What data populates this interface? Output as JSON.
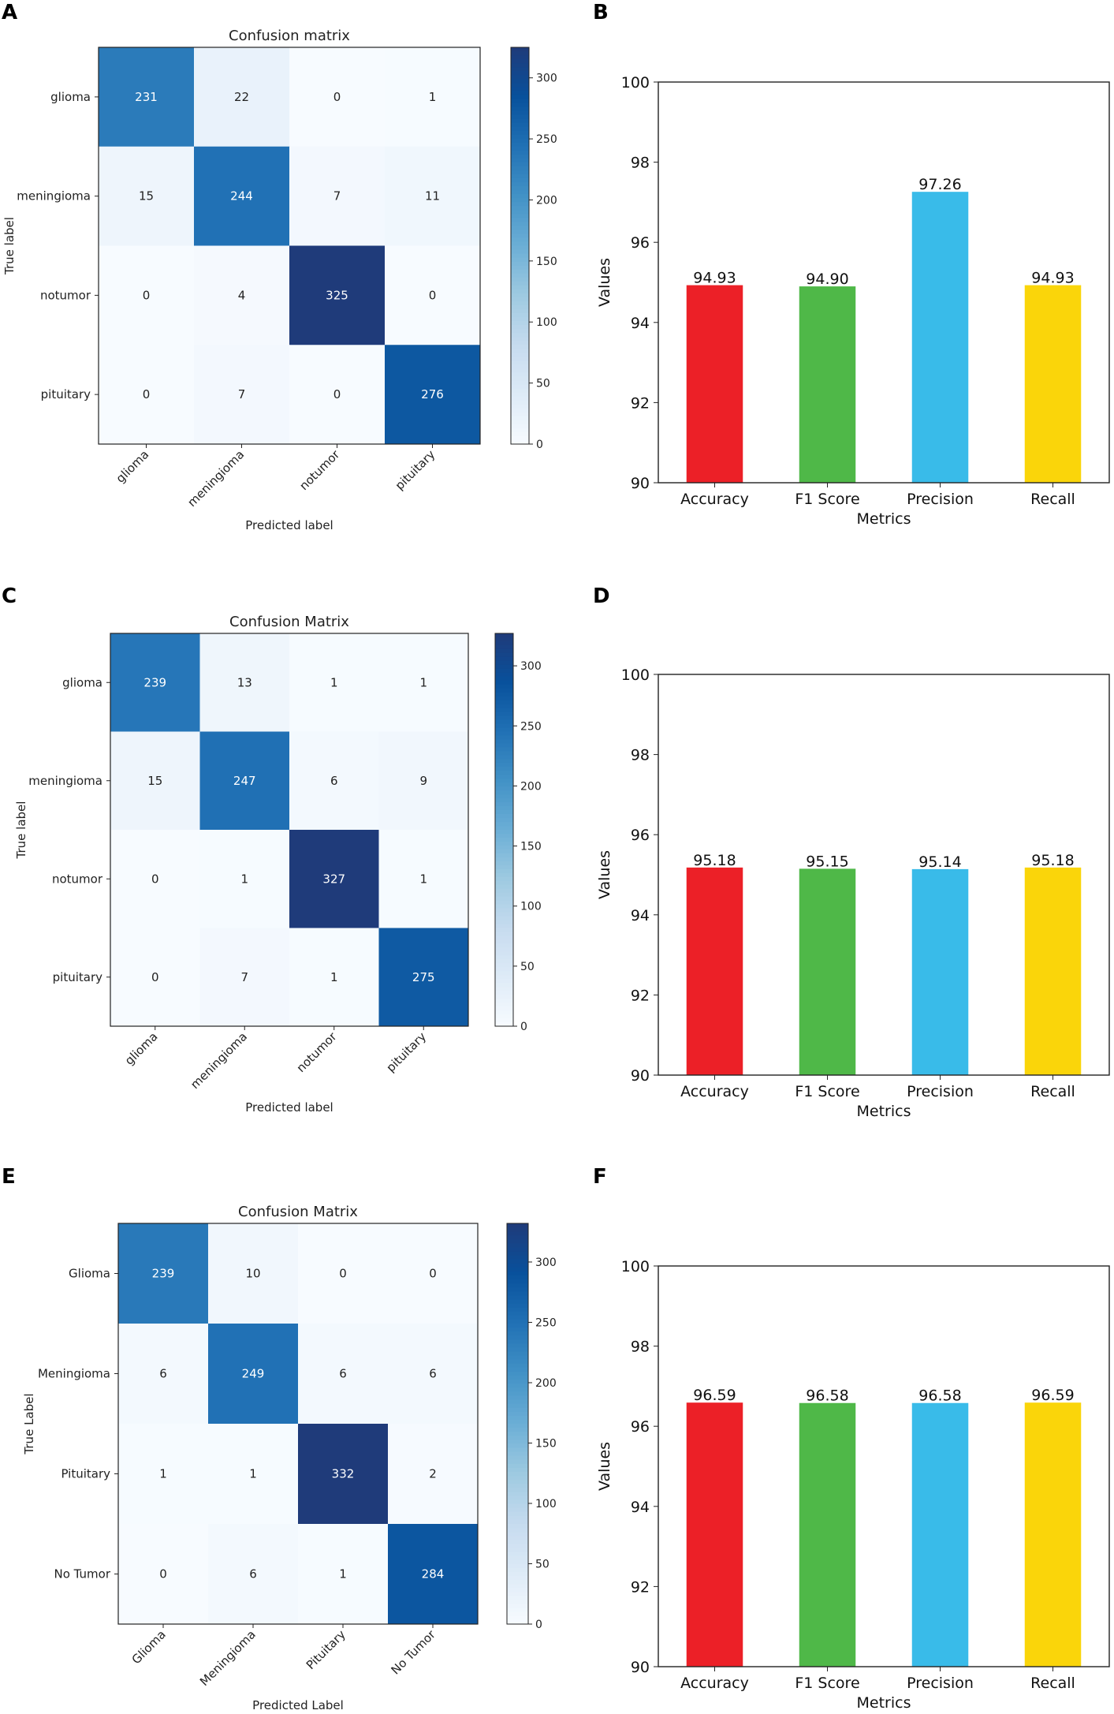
{
  "figure": {
    "panels": [
      "A",
      "B",
      "C",
      "D",
      "E",
      "F"
    ]
  },
  "chart_data": [
    {
      "panel": "A",
      "type": "heatmap",
      "title": "Confusion matrix",
      "xlabel": "Predicted label",
      "ylabel": "True label",
      "row_labels": [
        "glioma",
        "meningioma",
        "notumor",
        "pituitary"
      ],
      "col_labels": [
        "glioma",
        "meningioma",
        "notumor",
        "pituitary"
      ],
      "matrix": [
        [
          231,
          22,
          0,
          1
        ],
        [
          15,
          244,
          7,
          11
        ],
        [
          0,
          4,
          325,
          0
        ],
        [
          0,
          7,
          0,
          276
        ]
      ],
      "colorbar_ticks": [
        0,
        50,
        100,
        150,
        200,
        250,
        300
      ],
      "vmax": 325,
      "colormap": [
        "#f7fbff",
        "#deebf7",
        "#c6dbef",
        "#9ecae1",
        "#6baed6",
        "#4292c6",
        "#2171b5",
        "#08519c",
        "#1f3b7a"
      ]
    },
    {
      "panel": "B",
      "type": "bar",
      "title": "",
      "xlabel": "Metrics",
      "ylabel": "Values",
      "categories": [
        "Accuracy",
        "F1 Score",
        "Precision",
        "Recall"
      ],
      "values": [
        94.93,
        94.9,
        97.26,
        94.93
      ],
      "value_labels": [
        "94.93",
        "94.90",
        "97.26",
        "94.93"
      ],
      "colors": [
        "#ec2027",
        "#4fb848",
        "#39bbe9",
        "#fad50a"
      ],
      "ylim": [
        90,
        100
      ],
      "yticks": [
        90,
        92,
        94,
        96,
        98,
        100
      ]
    },
    {
      "panel": "C",
      "type": "heatmap",
      "title": "Confusion Matrix",
      "xlabel": "Predicted label",
      "ylabel": "True label",
      "row_labels": [
        "glioma",
        "meningioma",
        "notumor",
        "pituitary"
      ],
      "col_labels": [
        "glioma",
        "meningioma",
        "notumor",
        "pituitary"
      ],
      "matrix": [
        [
          239,
          13,
          1,
          1
        ],
        [
          15,
          247,
          6,
          9
        ],
        [
          0,
          1,
          327,
          1
        ],
        [
          0,
          7,
          1,
          275
        ]
      ],
      "colorbar_ticks": [
        0,
        50,
        100,
        150,
        200,
        250,
        300
      ],
      "vmax": 327,
      "colormap": [
        "#f7fbff",
        "#deebf7",
        "#c6dbef",
        "#9ecae1",
        "#6baed6",
        "#4292c6",
        "#2171b5",
        "#08519c",
        "#1f3b7a"
      ]
    },
    {
      "panel": "D",
      "type": "bar",
      "title": "",
      "xlabel": "Metrics",
      "ylabel": "Values",
      "categories": [
        "Accuracy",
        "F1 Score",
        "Precision",
        "Recall"
      ],
      "values": [
        95.18,
        95.15,
        95.14,
        95.18
      ],
      "value_labels": [
        "95.18",
        "95.15",
        "95.14",
        "95.18"
      ],
      "colors": [
        "#ec2027",
        "#4fb848",
        "#39bbe9",
        "#fad50a"
      ],
      "ylim": [
        90,
        100
      ],
      "yticks": [
        90,
        92,
        94,
        96,
        98,
        100
      ]
    },
    {
      "panel": "E",
      "type": "heatmap",
      "title": "Confusion Matrix",
      "xlabel": "Predicted Label",
      "ylabel": "True Label",
      "row_labels": [
        "Glioma",
        "Meningioma",
        "Pituitary",
        "No Tumor"
      ],
      "col_labels": [
        "Glioma",
        "Meningioma",
        "Pituitary",
        "No Tumor"
      ],
      "matrix": [
        [
          239,
          10,
          0,
          0
        ],
        [
          6,
          249,
          6,
          6
        ],
        [
          1,
          1,
          332,
          2
        ],
        [
          0,
          6,
          1,
          284
        ]
      ],
      "colorbar_ticks": [
        0,
        50,
        100,
        150,
        200,
        250,
        300
      ],
      "vmax": 332,
      "colormap": [
        "#f7fbff",
        "#deebf7",
        "#c6dbef",
        "#9ecae1",
        "#6baed6",
        "#4292c6",
        "#2171b5",
        "#08519c",
        "#1f3b7a"
      ]
    },
    {
      "panel": "F",
      "type": "bar",
      "title": "",
      "xlabel": "Metrics",
      "ylabel": "Values",
      "categories": [
        "Accuracy",
        "F1 Score",
        "Precision",
        "Recall"
      ],
      "values": [
        96.59,
        96.58,
        96.58,
        96.59
      ],
      "value_labels": [
        "96.59",
        "96.58",
        "96.58",
        "96.59"
      ],
      "colors": [
        "#ec2027",
        "#4fb848",
        "#39bbe9",
        "#fad50a"
      ],
      "ylim": [
        90,
        100
      ],
      "yticks": [
        90,
        92,
        94,
        96,
        98,
        100
      ]
    }
  ]
}
